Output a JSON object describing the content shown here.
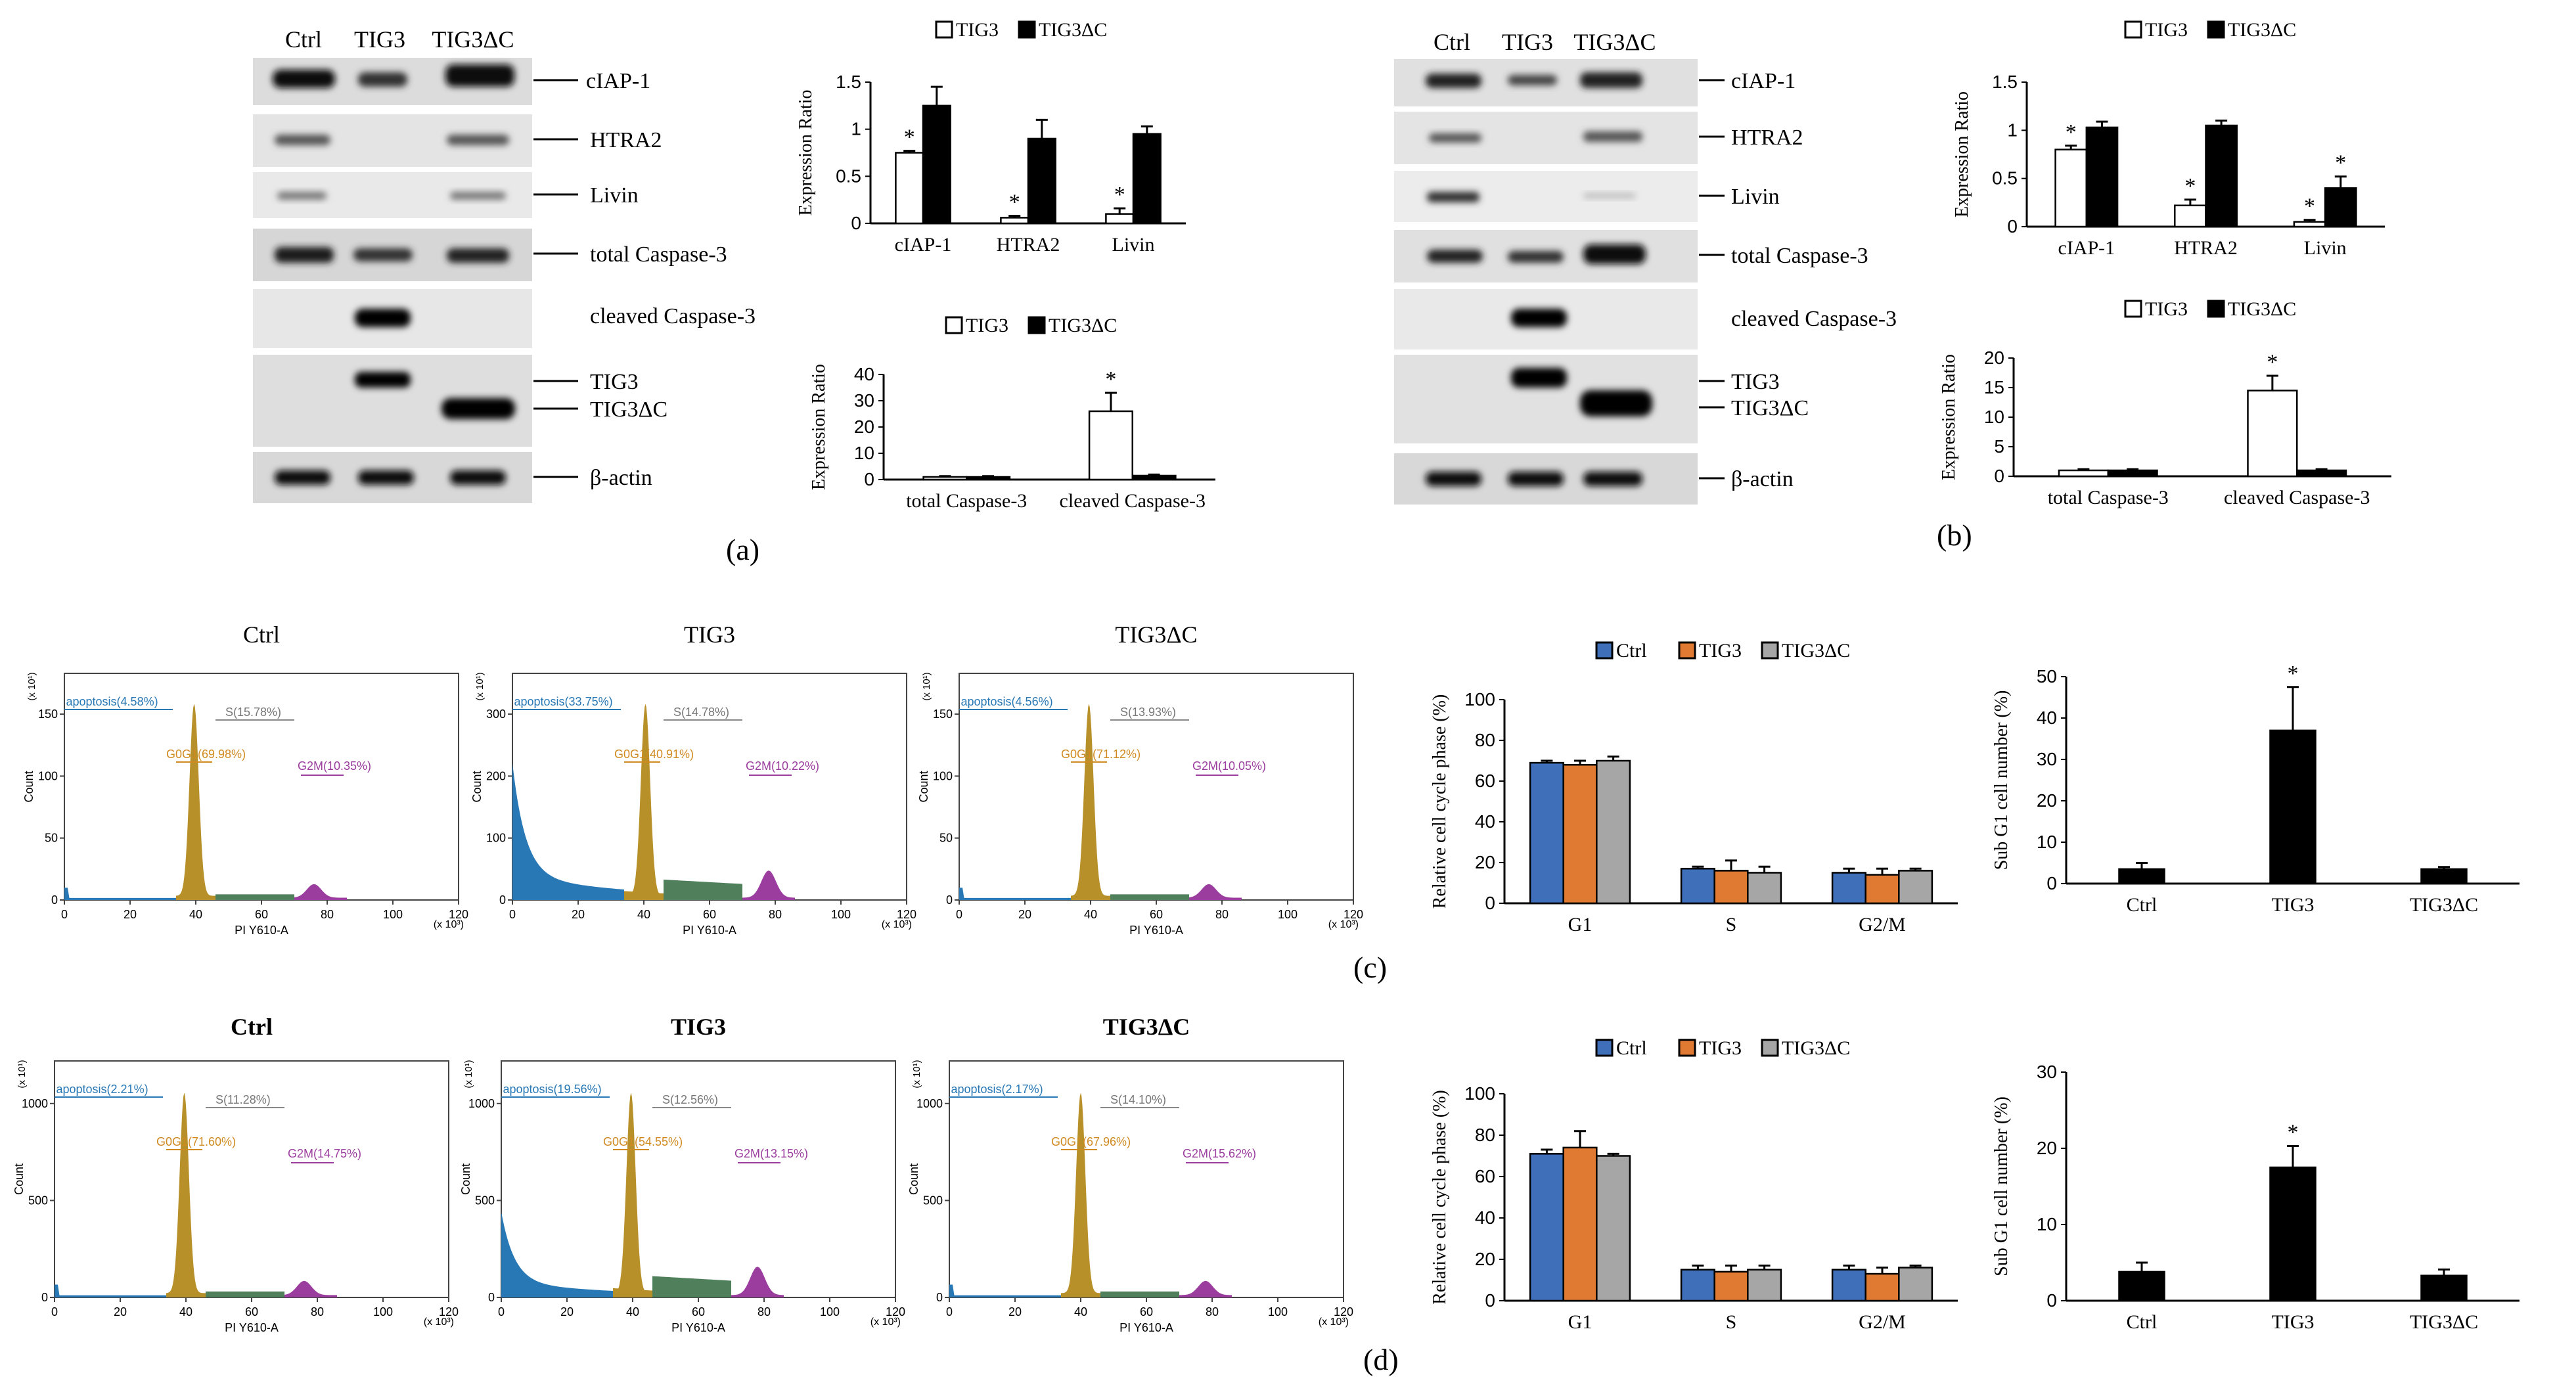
{
  "lanes": [
    "Ctrl",
    "TIG3",
    "TIG3ΔC"
  ],
  "blot_labels": [
    "cIAP-1",
    "HTRA2",
    "Livin",
    "total Caspase-3",
    "cleaved Caspase-3",
    "TIG3",
    "TIG3ΔC",
    "β-actin"
  ],
  "panel_letters": [
    "(a)",
    "(b)",
    "(c)",
    "(d)"
  ],
  "stat_marker": "*",
  "colors": {
    "ctrl": "#3f6fb8",
    "tig3": "#e07a33",
    "tig3dc": "#a6a6a6",
    "dark": "#000000",
    "gold": "#b8902a",
    "blue": "#2878b5",
    "purple": "#9b3d9e",
    "green": "#4f7f5b"
  },
  "flow": {
    "xlabel": "PI Y610-A",
    "xunit": "(x 10³)",
    "ylabel": "Count",
    "yunit": "(x 10¹)",
    "x_ticks": [
      "0",
      "20",
      "40",
      "60",
      "80",
      "100",
      "120"
    ],
    "panels": [
      {
        "title": "Ctrl",
        "y_ticks": [
          "0",
          "50",
          "100",
          "150"
        ],
        "apoptosis": "apoptosis(4.58%)",
        "s": "S(15.78%)",
        "g0g1": "G0G1(69.98%)",
        "g2m": "G2M(10.35%)"
      },
      {
        "title": "TIG3",
        "y_ticks": [
          "0",
          "100",
          "200",
          "300"
        ],
        "apoptosis": "apoptosis(33.75%)",
        "s": "S(14.78%)",
        "g0g1": "G0G1(40.91%)",
        "g2m": "G2M(10.22%)"
      },
      {
        "title": "TIG3ΔC",
        "y_ticks": [
          "0",
          "50",
          "100",
          "150"
        ],
        "apoptosis": "apoptosis(4.56%)",
        "s": "S(13.93%)",
        "g0g1": "G0G1(71.12%)",
        "g2m": "G2M(10.05%)"
      },
      {
        "title": "Ctrl",
        "y_ticks": [
          "0",
          "500",
          "1000"
        ],
        "apoptosis": "apoptosis(2.21%)",
        "s": "S(11.28%)",
        "g0g1": "G0G1(71.60%)",
        "g2m": "G2M(14.75%)"
      },
      {
        "title": "TIG3",
        "y_ticks": [
          "0",
          "500",
          "1000"
        ],
        "apoptosis": "apoptosis(19.56%)",
        "s": "S(12.56%)",
        "g0g1": "G0G1(54.55%)",
        "g2m": "G2M(13.15%)"
      },
      {
        "title": "TIG3ΔC",
        "y_ticks": [
          "0",
          "500",
          "1000"
        ],
        "apoptosis": "apoptosis(2.17%)",
        "s": "S(14.10%)",
        "g0g1": "G0G1(67.96%)",
        "g2m": "G2M(15.62%)"
      }
    ]
  },
  "chart_data": [
    {
      "id": "a-iap",
      "type": "bar",
      "title": "",
      "legend": [
        "TIG3",
        "TIG3ΔC"
      ],
      "ylabel": "Expression Ratio",
      "ylim": [
        0,
        1.5
      ],
      "yticks": [
        "0",
        "0.5",
        "1",
        "1.5"
      ],
      "categories": [
        "cIAP-1",
        "HTRA2",
        "Livin"
      ],
      "series": [
        {
          "name": "TIG3",
          "values": [
            0.75,
            0.06,
            0.1
          ],
          "errors": [
            0.02,
            0.02,
            0.06
          ]
        },
        {
          "name": "TIG3ΔC",
          "values": [
            1.25,
            0.9,
            0.95
          ],
          "errors": [
            0.2,
            0.2,
            0.08
          ]
        }
      ],
      "significant": [
        [
          true,
          true,
          true
        ],
        [
          false,
          false,
          false
        ]
      ]
    },
    {
      "id": "a-casp",
      "type": "bar",
      "title": "",
      "legend": [
        "TIG3",
        "TIG3ΔC"
      ],
      "ylabel": "Expression Ratio",
      "ylim": [
        0,
        40
      ],
      "yticks": [
        "0",
        "10",
        "20",
        "30",
        "40"
      ],
      "categories": [
        "total Caspase-3",
        "cleaved Caspase-3"
      ],
      "series": [
        {
          "name": "TIG3",
          "values": [
            1,
            26
          ],
          "errors": [
            0.3,
            7
          ]
        },
        {
          "name": "TIG3ΔC",
          "values": [
            1,
            1.5
          ],
          "errors": [
            0.3,
            0.4
          ]
        }
      ],
      "significant": [
        [
          false,
          true
        ],
        [
          false,
          false
        ]
      ]
    },
    {
      "id": "b-iap",
      "type": "bar",
      "title": "",
      "legend": [
        "TIG3",
        "TIG3ΔC"
      ],
      "ylabel": "Expression Ratio",
      "ylim": [
        0,
        1.5
      ],
      "yticks": [
        "0",
        "0.5",
        "1",
        "1.5"
      ],
      "categories": [
        "cIAP-1",
        "HTRA2",
        "Livin"
      ],
      "series": [
        {
          "name": "TIG3",
          "values": [
            0.8,
            0.22,
            0.05
          ],
          "errors": [
            0.04,
            0.06,
            0.02
          ]
        },
        {
          "name": "TIG3ΔC",
          "values": [
            1.03,
            1.05,
            0.4
          ],
          "errors": [
            0.06,
            0.05,
            0.12
          ]
        }
      ],
      "significant": [
        [
          true,
          true,
          true
        ],
        [
          false,
          false,
          true
        ]
      ]
    },
    {
      "id": "b-casp",
      "type": "bar",
      "title": "",
      "legend": [
        "TIG3",
        "TIG3ΔC"
      ],
      "ylabel": "Expression Ratio",
      "ylim": [
        0,
        20
      ],
      "yticks": [
        "0",
        "5",
        "10",
        "15",
        "20"
      ],
      "categories": [
        "total Caspase-3",
        "cleaved Caspase-3"
      ],
      "series": [
        {
          "name": "TIG3",
          "values": [
            1,
            14.5
          ],
          "errors": [
            0.2,
            2.5
          ]
        },
        {
          "name": "TIG3ΔC",
          "values": [
            1,
            1
          ],
          "errors": [
            0.2,
            0.2
          ]
        }
      ],
      "significant": [
        [
          false,
          true
        ],
        [
          false,
          false
        ]
      ]
    },
    {
      "id": "c-cycle",
      "type": "bar",
      "title": "",
      "legend": [
        "Ctrl",
        "TIG3",
        "TIG3ΔC"
      ],
      "ylabel": "Relative cell cycle phase (%)",
      "ylim": [
        0,
        100
      ],
      "yticks": [
        "0",
        "20",
        "40",
        "60",
        "80",
        "100"
      ],
      "categories": [
        "G1",
        "S",
        "G2/M"
      ],
      "series": [
        {
          "name": "Ctrl",
          "values": [
            69,
            17,
            15
          ],
          "errors": [
            1,
            1,
            2
          ]
        },
        {
          "name": "TIG3",
          "values": [
            68,
            16,
            14
          ],
          "errors": [
            2,
            5,
            3
          ]
        },
        {
          "name": "TIG3ΔC",
          "values": [
            70,
            15,
            16
          ],
          "errors": [
            2,
            3,
            1
          ]
        }
      ]
    },
    {
      "id": "c-sub",
      "type": "bar",
      "title": "",
      "legend": [],
      "ylabel": "Sub G1 cell number (%)",
      "ylim": [
        0,
        50
      ],
      "yticks": [
        "0",
        "10",
        "20",
        "30",
        "40",
        "50"
      ],
      "categories": [
        "Ctrl",
        "TIG3",
        "TIG3ΔC"
      ],
      "series": [
        {
          "name": "Sub G1",
          "values": [
            3.5,
            37,
            3.5
          ],
          "errors": [
            1.5,
            10.5,
            0.5
          ]
        }
      ],
      "significant": [
        [
          false,
          true,
          false
        ]
      ]
    },
    {
      "id": "d-cycle",
      "type": "bar",
      "title": "",
      "legend": [
        "Ctrl",
        "TIG3",
        "TIG3ΔC"
      ],
      "ylabel": "Relative cell cycle phase (%)",
      "ylim": [
        0,
        100
      ],
      "yticks": [
        "0",
        "20",
        "40",
        "60",
        "80",
        "100"
      ],
      "categories": [
        "G1",
        "S",
        "G2/M"
      ],
      "series": [
        {
          "name": "Ctrl",
          "values": [
            71,
            15,
            15
          ],
          "errors": [
            2,
            2,
            2
          ]
        },
        {
          "name": "TIG3",
          "values": [
            74,
            14,
            13
          ],
          "errors": [
            8,
            3,
            3
          ]
        },
        {
          "name": "TIG3ΔC",
          "values": [
            70,
            15,
            16
          ],
          "errors": [
            1,
            2,
            1
          ]
        }
      ]
    },
    {
      "id": "d-sub",
      "type": "bar",
      "title": "",
      "legend": [],
      "ylabel": "Sub G1 cell number (%)",
      "ylim": [
        0,
        30
      ],
      "yticks": [
        "0",
        "10",
        "20",
        "30"
      ],
      "categories": [
        "Ctrl",
        "TIG3",
        "TIG3ΔC"
      ],
      "series": [
        {
          "name": "Sub G1",
          "values": [
            3.8,
            17.5,
            3.3
          ],
          "errors": [
            1.2,
            2.8,
            0.8
          ]
        }
      ],
      "significant": [
        [
          false,
          true,
          false
        ]
      ]
    }
  ]
}
